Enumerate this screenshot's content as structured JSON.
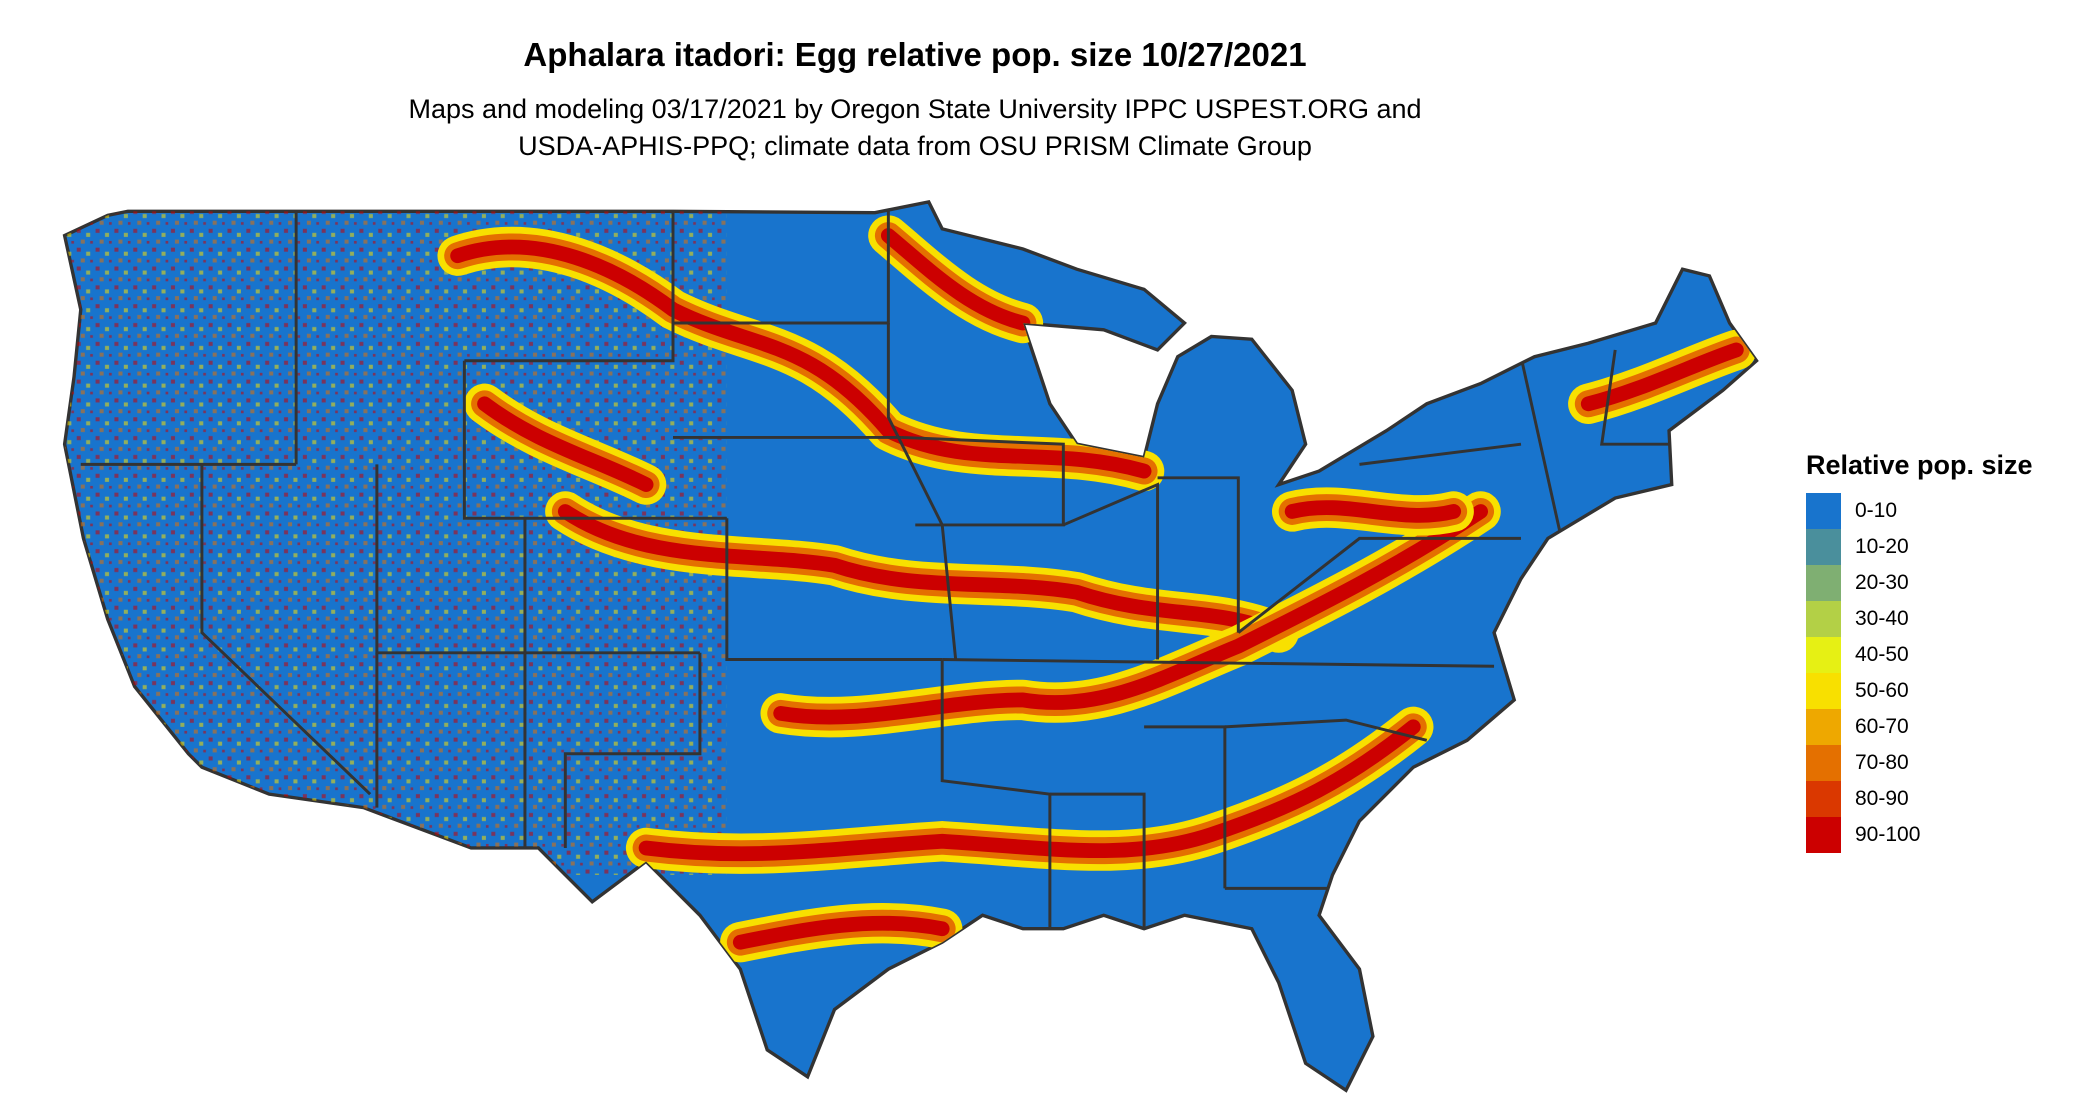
{
  "title": "Aphalara itadori: Egg relative pop. size 10/27/2021",
  "subtitle": [
    "Maps and modeling 03/17/2021 by Oregon State University IPPC USPEST.ORG and",
    "USDA-APHIS-PPQ; climate data from OSU PRISM Climate Group"
  ],
  "legend": {
    "title": "Relative pop. size",
    "items": [
      {
        "label": "0-10",
        "color": "#1874CD"
      },
      {
        "label": "10-20",
        "color": "#4A8F9C"
      },
      {
        "label": "20-30",
        "color": "#7FAF72"
      },
      {
        "label": "30-40",
        "color": "#B3D046"
      },
      {
        "label": "40-50",
        "color": "#E6F014"
      },
      {
        "label": "50-60",
        "color": "#F8E000"
      },
      {
        "label": "60-70",
        "color": "#EEA800"
      },
      {
        "label": "70-80",
        "color": "#E47000"
      },
      {
        "label": "80-90",
        "color": "#DA3800"
      },
      {
        "label": "90-100",
        "color": "#CC0000"
      }
    ]
  },
  "map": {
    "region": "contiguous United States",
    "state_border_color": "#333333"
  }
}
